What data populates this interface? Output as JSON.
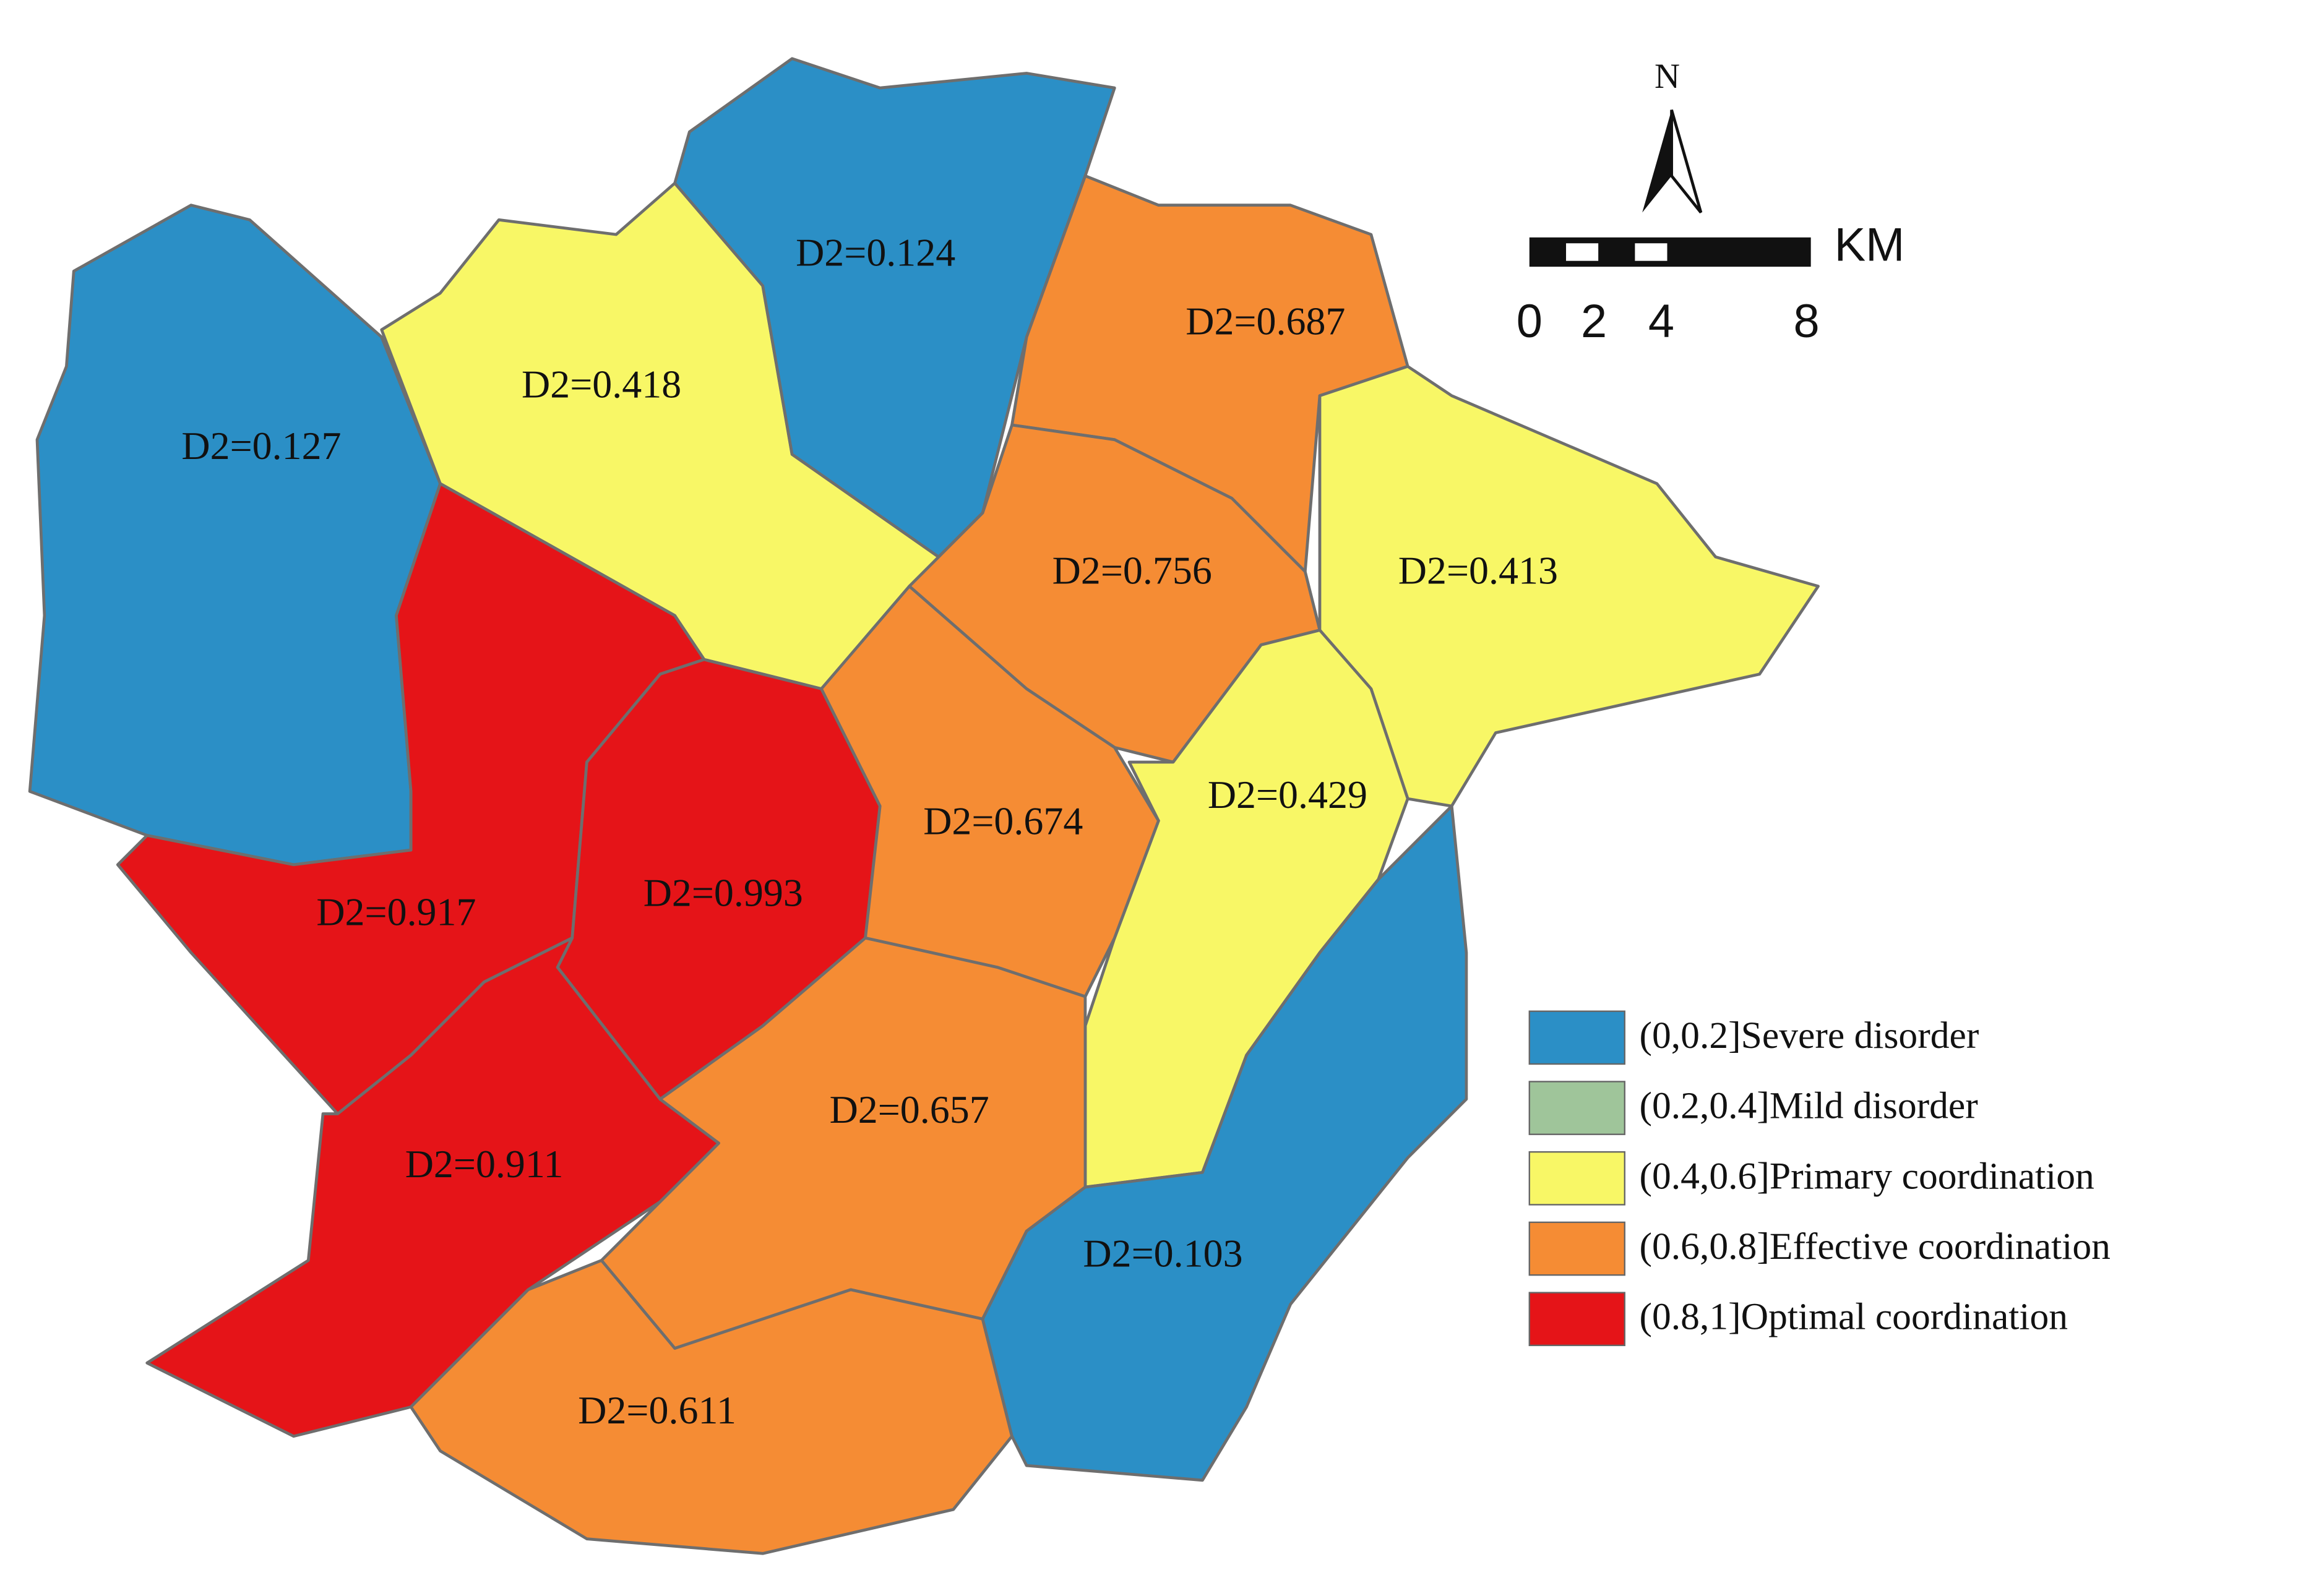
{
  "regions": [
    {
      "label": "D2=0.127"
    },
    {
      "label": "D2=0.418"
    },
    {
      "label": "D2=0.124"
    },
    {
      "label": "D2=0.687"
    },
    {
      "label": "D2=0.756"
    },
    {
      "label": "D2=0.413"
    },
    {
      "label": "D2=0.429"
    },
    {
      "label": "D2=0.917"
    },
    {
      "label": "D2=0.993"
    },
    {
      "label": "D2=0.911"
    },
    {
      "label": "D2=0.674"
    },
    {
      "label": "D2=0.657"
    },
    {
      "label": "D2=0.611"
    },
    {
      "label": "D2=0.103"
    }
  ],
  "legend": {
    "items": [
      {
        "label": "(0,0.2]Severe disorder",
        "color": "#2b8fc6"
      },
      {
        "label": "(0.2,0.4]Mild disorder",
        "color": "#9fc59a"
      },
      {
        "label": "(0.4,0.6]Primary coordination",
        "color": "#f8f766"
      },
      {
        "label": "(0.6,0.8]Effective coordination",
        "color": "#f58c34"
      },
      {
        "label": "(0.8,1]Optimal coordination",
        "color": "#e51418"
      }
    ]
  },
  "scale_bar": {
    "unit": "KM",
    "labels": [
      "0",
      "2",
      "4",
      "8"
    ]
  },
  "north_arrow": {
    "label": "N"
  }
}
